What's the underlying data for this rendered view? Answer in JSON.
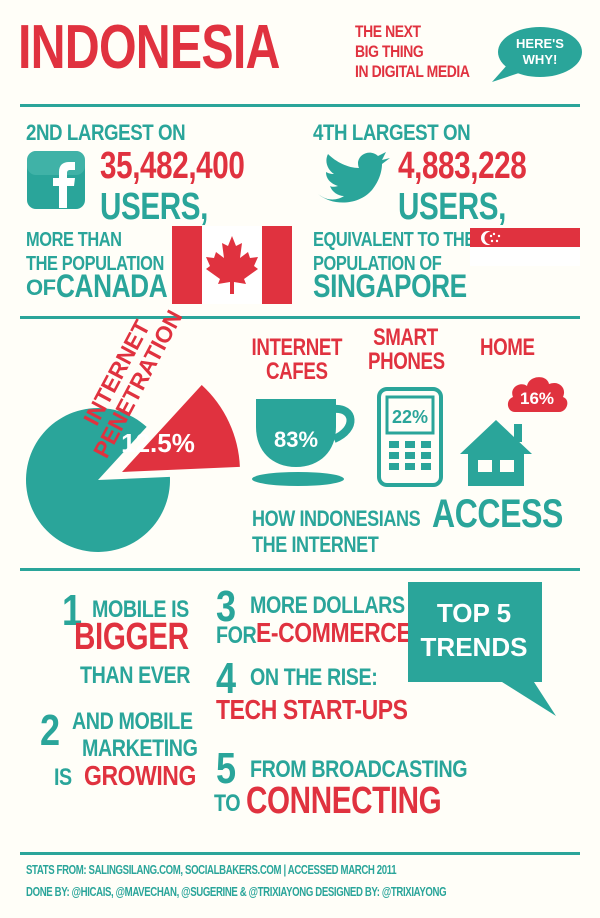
{
  "header": {
    "title": "INDONESIA",
    "tagline": [
      "THE NEXT",
      "BIG THING",
      "IN DIGITAL MEDIA"
    ],
    "bubble": [
      "HERE'S",
      "WHY!"
    ]
  },
  "facebook": {
    "rank": "2ND LARGEST ON",
    "users_count": "35,482,400",
    "users_label": "USERS,",
    "comparison": [
      "MORE THAN",
      "THE POPULATION"
    ],
    "of_prefix": "OF",
    "country": "CANADA",
    "icon": "facebook-icon"
  },
  "twitter": {
    "rank": "4TH LARGEST ON",
    "users_count": "4,883,228",
    "users_label": "USERS,",
    "comparison": [
      "EQUIVALENT TO THE",
      "POPULATION OF"
    ],
    "country": "SINGAPORE",
    "icon": "twitter-bird-icon"
  },
  "penetration": {
    "label": [
      "INTERNET",
      "PENETRATION"
    ],
    "value": "12.5%",
    "fraction": 0.125
  },
  "access": {
    "caption_prefix": [
      "HOW INDONESIANS",
      "THE INTERNET"
    ],
    "caption_big": "ACCESS",
    "items": [
      {
        "label": [
          "INTERNET",
          "CAFES"
        ],
        "value": "83%",
        "icon": "coffee-cup-icon"
      },
      {
        "label": [
          "SMART",
          "PHONES"
        ],
        "value": "22%",
        "icon": "smartphone-icon"
      },
      {
        "label": [
          "HOME"
        ],
        "value": "16%",
        "icon": "house-icon"
      }
    ]
  },
  "trends": {
    "badge": [
      "TOP 5",
      "TRENDS"
    ],
    "t1": {
      "num": "1",
      "a": "MOBILE IS",
      "b": "BIGGER",
      "c": "THAN EVER"
    },
    "t2": {
      "num": "2",
      "a": "AND MOBILE",
      "b": "MARKETING",
      "c_prefix": "IS",
      "c": "GROWING"
    },
    "t3": {
      "num": "3",
      "a": "MORE DOLLARS",
      "b_prefix": "FOR",
      "b": "E-COMMERCE"
    },
    "t4": {
      "num": "4",
      "a": "ON THE RISE:",
      "b": "TECH START-UPS"
    },
    "t5": {
      "num": "5",
      "a": "FROM BROADCASTING",
      "b_prefix": "TO",
      "b": "CONNECTING"
    }
  },
  "footer": {
    "line1": "STATS FROM: SALINGSILANG.COM, SOCIALBAKERS.COM | ACCESSED MARCH 2011",
    "line2": "DONE BY: @HICAIS, @MAVECHAN, @SUGERINE & @TRIXIAYONG   DESIGNED BY: @TRIXIAYONG"
  },
  "colors": {
    "teal": "#2aa59a",
    "red": "#e0323f",
    "background": "#fffef8"
  }
}
